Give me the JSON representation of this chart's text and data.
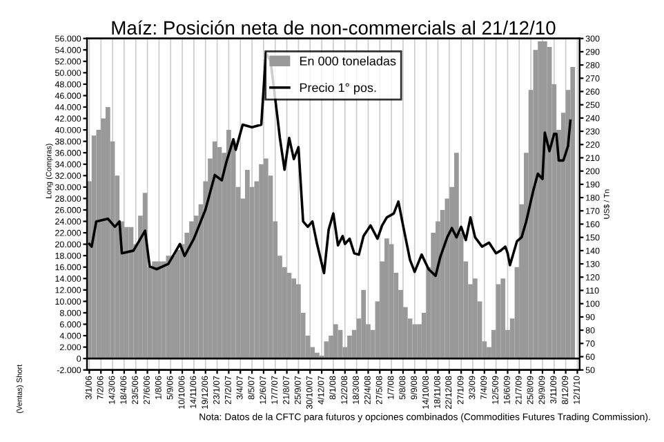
{
  "chart_data": {
    "type": "bar",
    "title": "Maíz: Posición neta de non-commercials al 21/12/10",
    "ylabel": "Long (Compras)",
    "y2label": "US$ / Tn",
    "annotations": [
      "(Ventas) Short",
      "Nota: Datos de la CFTC para futuros y opciones combinados (Commodities Futures Trading Commission)."
    ],
    "xlim": [
      "2005-12-27",
      "2010-01-19"
    ],
    "xticks": [
      {
        "value": "2006-01-03",
        "label": "3/1/06"
      },
      {
        "value": "2006-02-07",
        "label": "7/2/06"
      },
      {
        "value": "2006-03-14",
        "label": "14/3/06"
      },
      {
        "value": "2006-04-18",
        "label": "18/4/06"
      },
      {
        "value": "2006-05-23",
        "label": "23/5/06"
      },
      {
        "value": "2006-06-27",
        "label": "27/6/06"
      },
      {
        "value": "2006-08-01",
        "label": "1/8/06"
      },
      {
        "value": "2006-09-05",
        "label": "5/9/06"
      },
      {
        "value": "2006-10-10",
        "label": "10/10/06"
      },
      {
        "value": "2006-11-14",
        "label": "14/11/06"
      },
      {
        "value": "2006-12-19",
        "label": "19/12/06"
      },
      {
        "value": "2007-01-23",
        "label": "23/1/07"
      },
      {
        "value": "2007-02-27",
        "label": "27/2/07"
      },
      {
        "value": "2007-04-03",
        "label": "3/4/07"
      },
      {
        "value": "2007-05-08",
        "label": "8/5/07"
      },
      {
        "value": "2007-06-12",
        "label": "12/6/07"
      },
      {
        "value": "2007-07-17",
        "label": "17/7/07"
      },
      {
        "value": "2007-08-21",
        "label": "21/8/07"
      },
      {
        "value": "2007-09-25",
        "label": "25/9/07"
      },
      {
        "value": "2007-10-30",
        "label": "30/10/07"
      },
      {
        "value": "2007-12-04",
        "label": "4/12/07"
      },
      {
        "value": "2008-01-08",
        "label": "8/1/08"
      },
      {
        "value": "2008-02-12",
        "label": "12/2/08"
      },
      {
        "value": "2008-03-18",
        "label": "18/3/08"
      },
      {
        "value": "2008-04-22",
        "label": "22/4/08"
      },
      {
        "value": "2008-05-27",
        "label": "27/5/08"
      },
      {
        "value": "2008-07-01",
        "label": "1/7/08"
      },
      {
        "value": "2008-08-05",
        "label": "5/8/08"
      },
      {
        "value": "2008-09-09",
        "label": "9/9/08"
      },
      {
        "value": "2008-10-14",
        "label": "14/10/08"
      },
      {
        "value": "2008-11-18",
        "label": "18/11/08"
      },
      {
        "value": "2008-12-22",
        "label": "22/12/08"
      },
      {
        "value": "2009-01-27",
        "label": "27/1/09"
      },
      {
        "value": "2009-03-03",
        "label": "3/3/09"
      },
      {
        "value": "2009-04-07",
        "label": "7/4/09"
      },
      {
        "value": "2009-05-12",
        "label": "12/5/09"
      },
      {
        "value": "2009-06-16",
        "label": "16/6/09"
      },
      {
        "value": "2009-07-21",
        "label": "21/7/09"
      },
      {
        "value": "2009-08-25",
        "label": "25/8/09"
      },
      {
        "value": "2009-09-29",
        "label": "29/9/09"
      },
      {
        "value": "2009-11-03",
        "label": "3/11/09"
      },
      {
        "value": "2009-12-08",
        "label": "8/12/09"
      },
      {
        "value": "2010-01-12",
        "label": "12/1/10"
      }
    ],
    "ylim": [
      -2000,
      56000
    ],
    "yticks": [
      {
        "value": -2000,
        "label": "-2.000"
      },
      0,
      {
        "value": 2000,
        "label": "2.000"
      },
      {
        "value": 4000,
        "label": "4.000"
      },
      {
        "value": 6000,
        "label": "6.000"
      },
      {
        "value": 8000,
        "label": "8.000"
      },
      {
        "value": 10000,
        "label": "10.000"
      },
      {
        "value": 12000,
        "label": "12.000"
      },
      {
        "value": 14000,
        "label": "14.000"
      },
      {
        "value": 16000,
        "label": "16.000"
      },
      {
        "value": 18000,
        "label": "18.000"
      },
      {
        "value": 20000,
        "label": "20.000"
      },
      {
        "value": 22000,
        "label": "22.000"
      },
      {
        "value": 24000,
        "label": "24.000"
      },
      {
        "value": 26000,
        "label": "26.000"
      },
      {
        "value": 28000,
        "label": "28.000"
      },
      {
        "value": 30000,
        "label": "30.000"
      },
      {
        "value": 32000,
        "label": "32.000"
      },
      {
        "value": 34000,
        "label": "34.000"
      },
      {
        "value": 36000,
        "label": "36.000"
      },
      {
        "value": 38000,
        "label": "38.000"
      },
      {
        "value": 40000,
        "label": "40.000"
      },
      {
        "value": 42000,
        "label": "42.000"
      },
      {
        "value": 44000,
        "label": "44.000"
      },
      {
        "value": 46000,
        "label": "46.000"
      },
      {
        "value": 48000,
        "label": "48.000"
      },
      {
        "value": 50000,
        "label": "50.000"
      },
      {
        "value": 52000,
        "label": "52.000"
      },
      {
        "value": 54000,
        "label": "54.000"
      },
      {
        "value": 56000,
        "label": "56.000"
      }
    ],
    "y2lim": [
      50,
      300
    ],
    "y2ticks": [
      50,
      60,
      70,
      80,
      90,
      100,
      110,
      120,
      130,
      140,
      150,
      160,
      170,
      180,
      190,
      200,
      210,
      220,
      230,
      240,
      250,
      260,
      270,
      280,
      290,
      300
    ],
    "grid": "x",
    "legend": "top",
    "series": [
      {
        "name": "En 000 toneladas",
        "color": "#999999",
        "x": [
          "2006-01-03",
          "2006-01-17",
          "2006-01-31",
          "2006-02-14",
          "2006-02-28",
          "2006-03-14",
          "2006-03-28",
          "2006-04-11",
          "2006-04-25",
          "2006-05-09",
          "2006-05-23",
          "2006-06-06",
          "2006-06-20",
          "2006-07-04",
          "2006-07-18",
          "2006-08-01",
          "2006-08-15",
          "2006-08-29",
          "2006-09-12",
          "2006-09-26",
          "2006-10-10",
          "2006-10-24",
          "2006-11-07",
          "2006-11-21",
          "2006-12-05",
          "2006-12-19",
          "2007-01-02",
          "2007-01-16",
          "2007-01-30",
          "2007-02-13",
          "2007-02-27",
          "2007-03-13",
          "2007-03-27",
          "2007-04-10",
          "2007-04-24",
          "2007-05-08",
          "2007-05-22",
          "2007-06-05",
          "2007-06-19",
          "2007-07-03",
          "2007-07-17",
          "2007-07-31",
          "2007-08-14",
          "2007-08-28",
          "2007-09-11",
          "2007-09-25",
          "2007-10-09",
          "2007-10-23",
          "2007-11-06",
          "2007-11-20",
          "2007-12-04",
          "2007-12-18",
          "2008-01-01",
          "2008-01-15",
          "2008-01-29",
          "2008-02-12",
          "2008-02-26",
          "2008-03-11",
          "2008-03-25",
          "2008-04-08",
          "2008-04-22",
          "2008-05-06",
          "2008-05-20",
          "2008-06-03",
          "2008-06-17",
          "2008-07-01",
          "2008-07-15",
          "2008-07-29",
          "2008-08-12",
          "2008-08-26",
          "2008-09-09",
          "2008-09-23",
          "2008-10-07",
          "2008-10-21",
          "2008-11-04",
          "2008-11-18",
          "2008-12-02",
          "2008-12-16",
          "2008-12-30",
          "2009-01-13",
          "2009-01-27",
          "2009-02-10",
          "2009-02-24",
          "2009-03-10",
          "2009-03-24",
          "2009-04-07",
          "2009-04-21",
          "2009-05-05",
          "2009-05-19",
          "2009-06-02",
          "2009-06-16",
          "2009-06-30",
          "2009-07-14",
          "2009-07-28",
          "2009-08-11",
          "2009-08-25",
          "2009-09-08",
          "2009-09-22",
          "2009-10-06",
          "2009-10-20",
          "2009-11-03",
          "2009-11-17",
          "2009-12-01",
          "2009-12-15",
          "2009-12-29"
        ],
        "values": [
          31000,
          39000,
          40000,
          42000,
          44000,
          38000,
          32000,
          24000,
          23000,
          23000,
          20000,
          25000,
          29000,
          16000,
          17000,
          17000,
          17000,
          18000,
          18000,
          19000,
          20000,
          22000,
          24000,
          25000,
          27000,
          31000,
          35000,
          38000,
          37000,
          36000,
          40000,
          38000,
          30000,
          28000,
          33000,
          30000,
          31000,
          34000,
          35000,
          32000,
          24000,
          18000,
          16000,
          15000,
          14000,
          13000,
          8000,
          4000,
          2000,
          1000,
          500,
          3000,
          4000,
          6000,
          5000,
          2000,
          4000,
          5000,
          7000,
          12000,
          6000,
          5000,
          10000,
          17000,
          21000,
          20000,
          15000,
          12000,
          9000,
          7000,
          6000,
          6000,
          8000,
          16000,
          22000,
          24000,
          26000,
          28000,
          30000,
          36000,
          22000,
          17000,
          13000,
          14000,
          10000,
          3000,
          2000,
          5000,
          13000,
          14000,
          5000,
          7000,
          16000,
          27000,
          36000,
          47000,
          54000,
          55500,
          55500,
          54500,
          48000,
          40000,
          43000,
          47000,
          51000
        ]
      },
      {
        "name": "Precio 1° pos.",
        "type": "line",
        "axis": "y2",
        "color": "#000000",
        "x": [
          "2006-01-03",
          "2006-01-10",
          "2006-01-24",
          "2006-02-28",
          "2006-03-21",
          "2006-04-04",
          "2006-04-11",
          "2006-05-16",
          "2006-06-20",
          "2006-07-04",
          "2006-07-25",
          "2006-08-29",
          "2006-10-03",
          "2006-10-17",
          "2006-11-14",
          "2006-12-19",
          "2007-01-16",
          "2007-02-06",
          "2007-02-20",
          "2007-03-13",
          "2007-03-20",
          "2007-04-10",
          "2007-05-08",
          "2007-06-05",
          "2007-06-19",
          "2007-07-03",
          "2007-07-24",
          "2007-07-31",
          "2007-08-14",
          "2007-08-28",
          "2007-09-11",
          "2007-09-25",
          "2007-10-09",
          "2007-10-23",
          "2007-11-06",
          "2007-11-20",
          "2007-12-11",
          "2007-12-25",
          "2008-01-08",
          "2008-01-22",
          "2008-02-05",
          "2008-02-12",
          "2008-02-26",
          "2008-03-11",
          "2008-03-25",
          "2008-04-08",
          "2008-04-29",
          "2008-05-20",
          "2008-06-03",
          "2008-06-17",
          "2008-07-08",
          "2008-07-22",
          "2008-08-05",
          "2008-08-26",
          "2008-09-09",
          "2008-09-30",
          "2008-10-21",
          "2008-11-11",
          "2008-11-25",
          "2008-12-16",
          "2008-12-30",
          "2009-01-13",
          "2009-01-27",
          "2009-02-10",
          "2009-02-24",
          "2009-03-10",
          "2009-03-31",
          "2009-04-21",
          "2009-05-12",
          "2009-05-26",
          "2009-06-09",
          "2009-06-16",
          "2009-06-23",
          "2009-07-14",
          "2009-07-28",
          "2009-08-11",
          "2009-09-01",
          "2009-09-15",
          "2009-09-29",
          "2009-10-06",
          "2009-10-20",
          "2009-11-03",
          "2009-11-10",
          "2009-11-17",
          "2009-12-01",
          "2009-12-15",
          "2009-12-22"
        ],
        "values": [
          145,
          143,
          162,
          164,
          158,
          162,
          138,
          140,
          155,
          128,
          126,
          130,
          145,
          136,
          149,
          171,
          197,
          193,
          207,
          224,
          216,
          235,
          233,
          235,
          289,
          283,
          240,
          225,
          201,
          225,
          209,
          218,
          162,
          158,
          162,
          145,
          123,
          156,
          168,
          144,
          151,
          145,
          149,
          138,
          137,
          151,
          159,
          149,
          159,
          165,
          168,
          177,
          159,
          133,
          124,
          137,
          126,
          121,
          135,
          150,
          157,
          150,
          158,
          148,
          165,
          150,
          143,
          146,
          138,
          140,
          143,
          138,
          129,
          147,
          150,
          162,
          185,
          198,
          194,
          229,
          215,
          228,
          228,
          208,
          208,
          219,
          238
        ]
      }
    ]
  }
}
